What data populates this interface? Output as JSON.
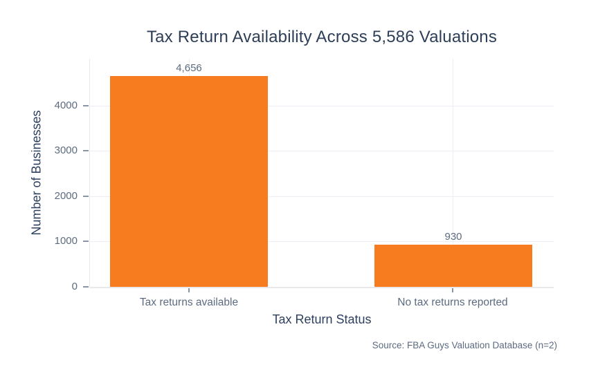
{
  "chart_data": {
    "type": "bar",
    "title": "Tax Return Availability Across 5,586 Valuations",
    "categories": [
      "Tax returns available",
      "No tax returns reported"
    ],
    "values": [
      4656,
      930
    ],
    "value_labels": [
      "4,656",
      "930"
    ],
    "xlabel": "Tax Return Status",
    "ylabel": "Number of Businesses",
    "ylim": [
      0,
      5030
    ],
    "yticks": [
      0,
      1000,
      2000,
      3000,
      4000
    ],
    "ytick_labels": [
      "0",
      "1000",
      "2000",
      "3000",
      "4000"
    ],
    "grid": "horizontal gridlines at each ytick plus faint vertical gridline at each category center",
    "legend_position": "none",
    "source": "Source: FBA Guys Valuation Database (n=2)",
    "colors": {
      "bar": "#F77B1F",
      "title_text": "#2d3e57",
      "axis_title_text": "#2d3f5e",
      "tick_text": "#5c6b80",
      "gridline": "#ebeff5",
      "axis_line": "#e8e9ed",
      "tick_mark": "#8b94a6",
      "background": "#ffffff"
    }
  }
}
